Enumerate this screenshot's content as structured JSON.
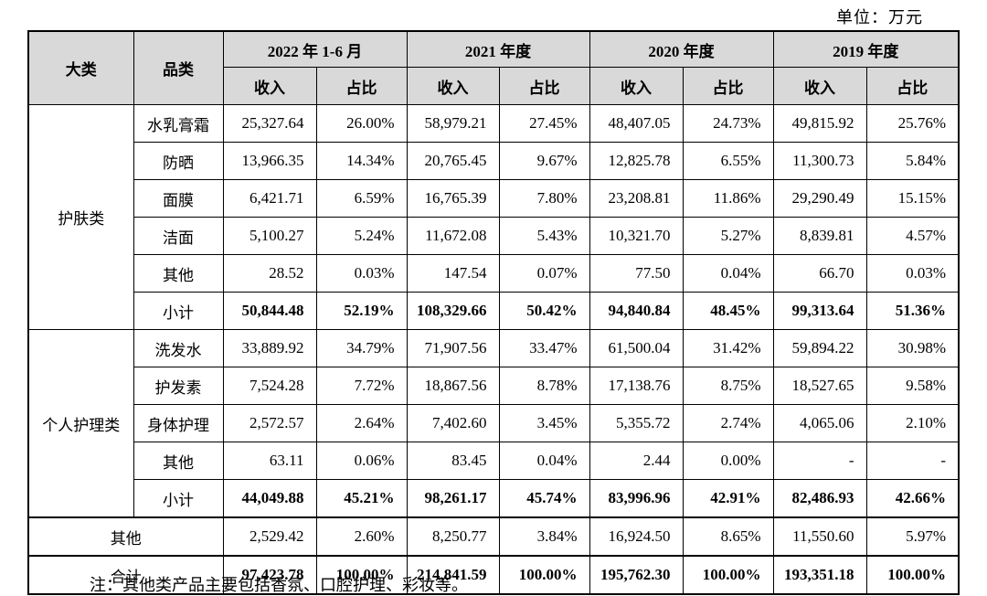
{
  "unit_label": "单位：万元",
  "note": "注：其他类产品主要包括香氛、口腔护理、彩妆等。",
  "table": {
    "corner_headers": [
      "大类",
      "品类"
    ],
    "periods": [
      "2022 年 1-6 月",
      "2021 年度",
      "2020 年度",
      "2019 年度"
    ],
    "sub_headers": [
      "收入",
      "占比"
    ],
    "rows": [
      {
        "category": "护肤类",
        "category_rowspan": 6,
        "label": "水乳膏霜",
        "bold": false,
        "values": [
          "25,327.64",
          "26.00%",
          "58,979.21",
          "27.45%",
          "48,407.05",
          "24.73%",
          "49,815.92",
          "25.76%"
        ]
      },
      {
        "label": "防晒",
        "bold": false,
        "values": [
          "13,966.35",
          "14.34%",
          "20,765.45",
          "9.67%",
          "12,825.78",
          "6.55%",
          "11,300.73",
          "5.84%"
        ]
      },
      {
        "label": "面膜",
        "bold": false,
        "values": [
          "6,421.71",
          "6.59%",
          "16,765.39",
          "7.80%",
          "23,208.81",
          "11.86%",
          "29,290.49",
          "15.15%"
        ]
      },
      {
        "label": "洁面",
        "bold": false,
        "values": [
          "5,100.27",
          "5.24%",
          "11,672.08",
          "5.43%",
          "10,321.70",
          "5.27%",
          "8,839.81",
          "4.57%"
        ]
      },
      {
        "label": "其他",
        "bold": false,
        "values": [
          "28.52",
          "0.03%",
          "147.54",
          "0.07%",
          "77.50",
          "0.04%",
          "66.70",
          "0.03%"
        ]
      },
      {
        "label": "小计",
        "bold": true,
        "values": [
          "50,844.48",
          "52.19%",
          "108,329.66",
          "50.42%",
          "94,840.84",
          "48.45%",
          "99,313.64",
          "51.36%"
        ]
      },
      {
        "category": "个人护理类",
        "category_rowspan": 5,
        "label": "洗发水",
        "bold": false,
        "values": [
          "33,889.92",
          "34.79%",
          "71,907.56",
          "33.47%",
          "61,500.04",
          "31.42%",
          "59,894.22",
          "30.98%"
        ]
      },
      {
        "label": "护发素",
        "bold": false,
        "values": [
          "7,524.28",
          "7.72%",
          "18,867.56",
          "8.78%",
          "17,138.76",
          "8.75%",
          "18,527.65",
          "9.58%"
        ]
      },
      {
        "label": "身体护理",
        "bold": false,
        "values": [
          "2,572.57",
          "2.64%",
          "7,402.60",
          "3.45%",
          "5,355.72",
          "2.74%",
          "4,065.06",
          "2.10%"
        ]
      },
      {
        "label": "其他",
        "bold": false,
        "values": [
          "63.11",
          "0.06%",
          "83.45",
          "0.04%",
          "2.44",
          "0.00%",
          "-",
          "-"
        ]
      },
      {
        "label": "小计",
        "bold": true,
        "values": [
          "44,049.88",
          "45.21%",
          "98,261.17",
          "45.74%",
          "83,996.96",
          "42.91%",
          "82,486.93",
          "42.66%"
        ]
      },
      {
        "label": "其他",
        "label_colspan": 2,
        "thick_top": true,
        "bold": false,
        "values": [
          "2,529.42",
          "2.60%",
          "8,250.77",
          "3.84%",
          "16,924.50",
          "8.65%",
          "11,550.60",
          "5.97%"
        ]
      },
      {
        "label": "合计",
        "label_colspan": 2,
        "thick_top": true,
        "bold": true,
        "values": [
          "97,423.78",
          "100.00%",
          "214,841.59",
          "100.00%",
          "195,762.30",
          "100.00%",
          "193,351.18",
          "100.00%"
        ]
      }
    ]
  }
}
